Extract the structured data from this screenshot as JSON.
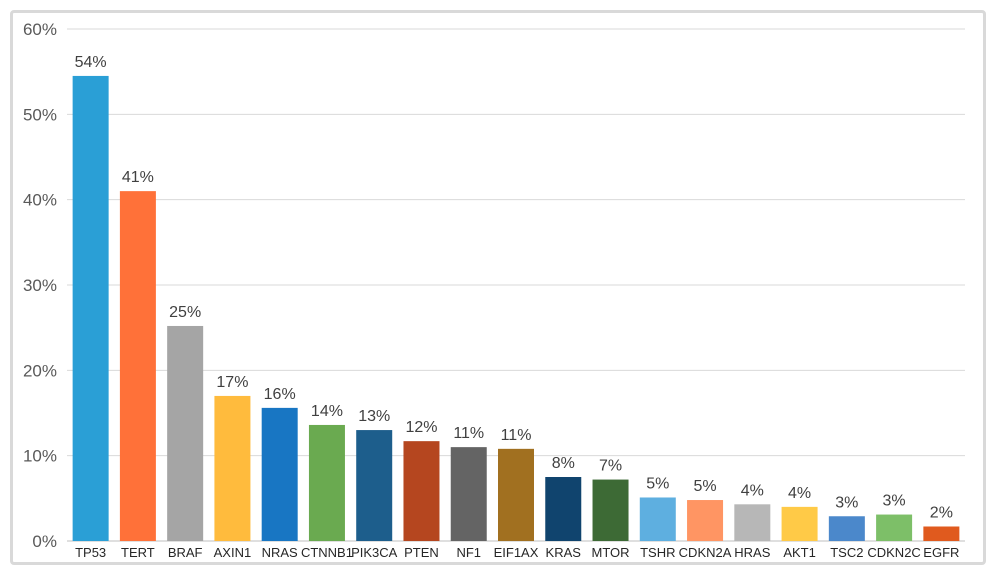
{
  "chart_data": {
    "type": "bar",
    "title": "",
    "xlabel": "",
    "ylabel": "",
    "ylim": [
      0,
      60
    ],
    "y_ticks": [
      "0%",
      "10%",
      "20%",
      "30%",
      "40%",
      "50%",
      "60%"
    ],
    "grid": true,
    "categories": [
      "TP53",
      "TERT",
      "BRAF",
      "AXIN1",
      "NRAS",
      "CTNNB1",
      "PIK3CA",
      "PTEN",
      "NF1",
      "EIF1AX",
      "KRAS",
      "MTOR",
      "TSHR",
      "CDKN2A",
      "HRAS",
      "AKT1",
      "TSC2",
      "CDKN2C",
      "EGFR"
    ],
    "values": [
      54.5,
      41,
      25.2,
      17,
      15.6,
      13.6,
      13,
      11.7,
      11,
      10.8,
      7.5,
      7.2,
      5.1,
      4.8,
      4.3,
      4,
      2.9,
      3.1,
      1.7
    ],
    "data_labels": [
      "54%",
      "41%",
      "25%",
      "17%",
      "16%",
      "14%",
      "13%",
      "12%",
      "11%",
      "11%",
      "8%",
      "7%",
      "5%",
      "5%",
      "4%",
      "4%",
      "3%",
      "3%",
      "2%"
    ],
    "colors": [
      "#2a9fd6",
      "#ff7139",
      "#a5a5a5",
      "#ffbb3d",
      "#1876c3",
      "#6aaa50",
      "#1d5e8c",
      "#b5461f",
      "#646464",
      "#a17020",
      "#10446e",
      "#3d6a35",
      "#5eafe0",
      "#ff9563",
      "#b7b7b7",
      "#ffca47",
      "#4b88cb",
      "#7dbf68",
      "#e05a1e"
    ]
  }
}
